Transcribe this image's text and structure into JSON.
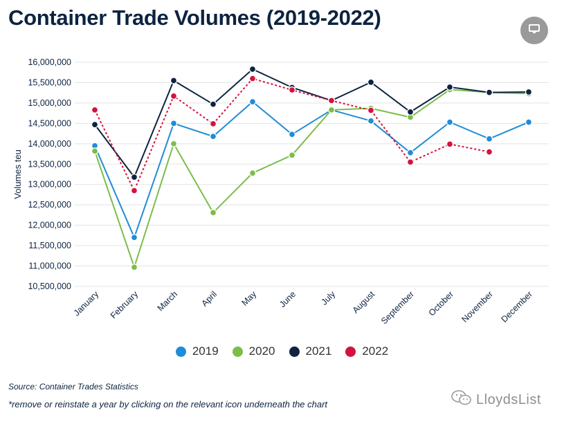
{
  "page": {
    "title": "Container Trade Volumes (2019-2022)",
    "source": "Source: Container Trades Statistics",
    "note": "*remove or reinstate a year by clicking on the relevant icon underneath the chart",
    "brand": "LloydsList",
    "menu_icon": "monitor-icon"
  },
  "chart_data": {
    "type": "line",
    "title": "Container Trade Volumes (2019-2022)",
    "xlabel": "",
    "ylabel": "Volumes teu",
    "categories": [
      "January",
      "February",
      "March",
      "April",
      "May",
      "June",
      "July",
      "August",
      "September",
      "October",
      "November",
      "December"
    ],
    "ylim": [
      10500000,
      16000000
    ],
    "yticks": [
      10500000,
      11000000,
      11500000,
      12000000,
      12500000,
      13000000,
      13500000,
      14000000,
      14500000,
      15000000,
      15500000,
      16000000
    ],
    "ytick_labels": [
      "10,500,000",
      "11,000,000",
      "11,500,000",
      "12,000,000",
      "12,500,000",
      "13,000,000",
      "13,500,000",
      "14,000,000",
      "14,500,000",
      "15,000,000",
      "15,500,000",
      "16,000,000"
    ],
    "grid": true,
    "legend_position": "bottom",
    "series": [
      {
        "name": "2019",
        "color": "#1f8dd6",
        "dashed": false,
        "values": [
          13950000,
          11700000,
          14500000,
          14180000,
          15030000,
          14230000,
          14830000,
          14560000,
          13780000,
          14530000,
          14120000,
          14530000
        ]
      },
      {
        "name": "2020",
        "color": "#7bbd4a",
        "dashed": false,
        "values": [
          13820000,
          10970000,
          14000000,
          12310000,
          13280000,
          13720000,
          14830000,
          14870000,
          14650000,
          15330000,
          15260000,
          15230000
        ]
      },
      {
        "name": "2021",
        "color": "#0d2340",
        "dashed": false,
        "values": [
          14470000,
          13180000,
          15550000,
          14970000,
          15830000,
          15380000,
          15060000,
          15510000,
          14780000,
          15390000,
          15260000,
          15270000
        ]
      },
      {
        "name": "2022",
        "color": "#d4123f",
        "dashed": true,
        "values": [
          14830000,
          12850000,
          15170000,
          14490000,
          15600000,
          15320000,
          15060000,
          14820000,
          13550000,
          13990000,
          13800000,
          null
        ]
      }
    ]
  }
}
